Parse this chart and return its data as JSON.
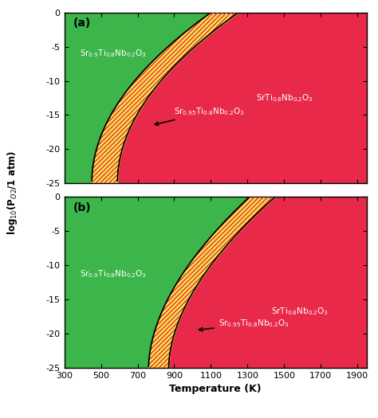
{
  "T_range": [
    300,
    1950
  ],
  "y_range": [
    -25,
    0
  ],
  "T_ticks": [
    300,
    500,
    700,
    900,
    1100,
    1300,
    1500,
    1700,
    1900
  ],
  "y_ticks": [
    0,
    -5,
    -10,
    -15,
    -20,
    -25
  ],
  "xlabel": "Temperature (K)",
  "ylabel": "log$_{10}$(P$_{O2}$/1 atm)",
  "green_color": "#3cb54a",
  "red_color": "#e8294a",
  "yellow_color": "#f5e642",
  "text_color": "#ffffff",
  "panel_a_label": "(a)",
  "panel_b_label": "(b)",
  "label_green_a": "Sr$_{0.9}$Ti$_{0.8}$Nb$_{0.2}$O$_3$",
  "label_red_a": "SrTi$_{0.8}$Nb$_{0.2}$O$_3$",
  "label_stripe_a": "Sr$_{0.95}$Ti$_{0.8}$Nb$_{0.2}$O$_3$",
  "label_green_b": "Sr$_{0.9}$Ti$_{0.8}$Nb$_{0.2}$O$_3$",
  "label_red_b": "SrTi$_{0.8}$Nb$_{0.2}$O$_3$",
  "label_stripe_b": "Sr$_{0.95}$Ti$_{0.8}$Nb$_{0.2}$O$_3$",
  "curve_a_left_params": [
    450,
    1100,
    -25,
    25,
    0.5
  ],
  "curve_a_right_params": [
    590,
    1250,
    -25,
    25,
    0.5
  ],
  "curve_b_left_params": [
    760,
    1310,
    -25,
    25,
    0.55
  ],
  "curve_b_right_params": [
    870,
    1450,
    -25,
    25,
    0.55
  ]
}
